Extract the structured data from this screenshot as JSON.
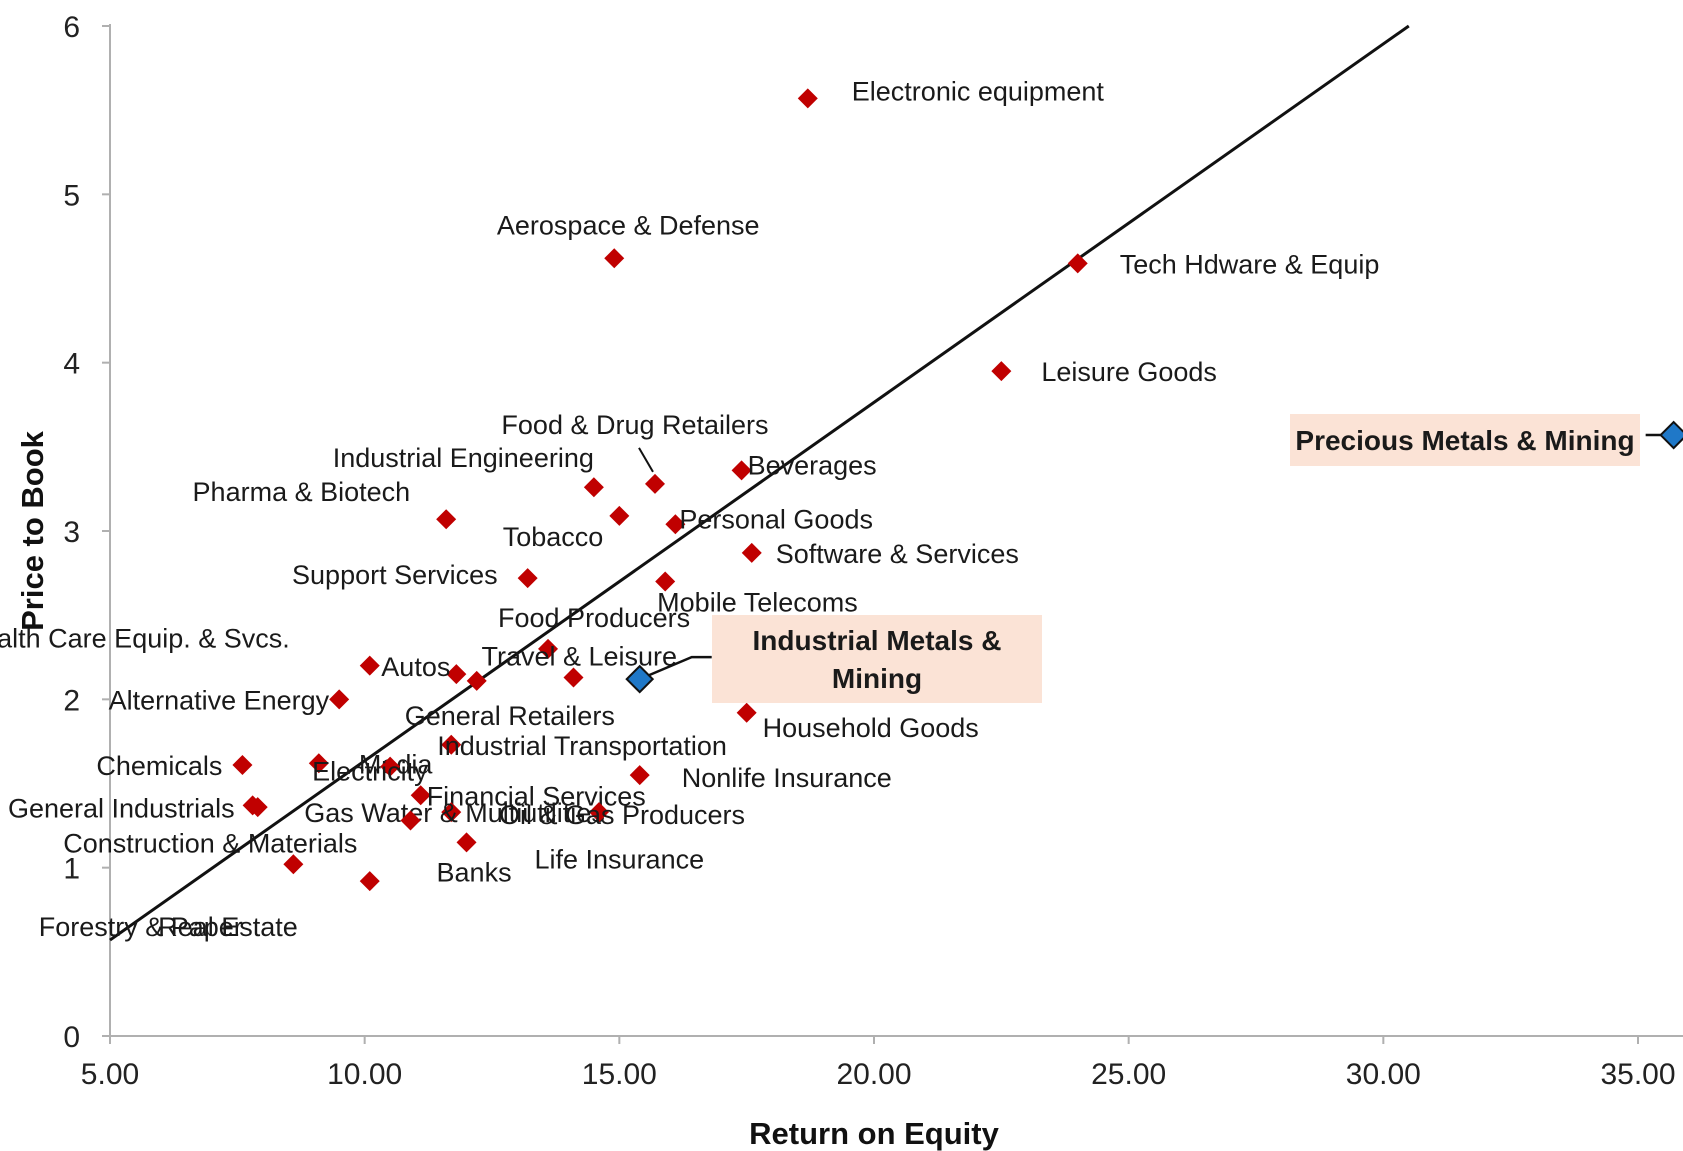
{
  "chart_data": {
    "type": "scatter",
    "xlabel": "Return on Equity",
    "ylabel": "Price to Book",
    "xlim": [
      5,
      35
    ],
    "ylim": [
      0,
      6
    ],
    "x_ticks": [
      "5.00",
      "10.00",
      "15.00",
      "20.00",
      "25.00",
      "30.00",
      "35.00"
    ],
    "y_ticks": [
      "0",
      "1",
      "2",
      "3",
      "4",
      "5",
      "6"
    ],
    "grid": false,
    "trendline": {
      "x": [
        5,
        30.5
      ],
      "y": [
        0.57,
        6.0
      ],
      "color": "#111111"
    },
    "point_color": "#c00000",
    "highlight_color": "#1f78c8",
    "highlight_box_color": "#fbe3d6",
    "points": [
      {
        "label": "Electronic equipment",
        "x": 18.7,
        "y": 5.57
      },
      {
        "label": "Aerospace & Defense",
        "x": 14.9,
        "y": 4.62
      },
      {
        "label": "Tech Hdware & Equip",
        "x": 24.0,
        "y": 4.59
      },
      {
        "label": "Leisure Goods",
        "x": 22.5,
        "y": 3.95
      },
      {
        "label": "Food & Drug Retailers",
        "x": 15.7,
        "y": 3.28
      },
      {
        "label": "Beverages",
        "x": 17.4,
        "y": 3.36
      },
      {
        "label": "Industrial Engineering",
        "x": 14.5,
        "y": 3.26
      },
      {
        "label": "Pharma & Biotech",
        "x": 11.6,
        "y": 3.07
      },
      {
        "label": "Tobacco",
        "x": 15.0,
        "y": 3.09
      },
      {
        "label": "Personal Goods",
        "x": 16.1,
        "y": 3.04
      },
      {
        "label": "Software &  Services",
        "x": 17.6,
        "y": 2.87
      },
      {
        "label": "Support Services",
        "x": 13.2,
        "y": 2.72
      },
      {
        "label": "Mobile Telecoms",
        "x": 15.9,
        "y": 2.7
      },
      {
        "label": "Food Producers",
        "x": 13.6,
        "y": 2.3
      },
      {
        "label": "Health Care Equip. & Svcs.",
        "x": 10.1,
        "y": 2.2
      },
      {
        "label": "Autos",
        "x": 11.8,
        "y": 2.15
      },
      {
        "label": "Travel & Leisure",
        "x": 14.1,
        "y": 2.13
      },
      {
        "label": "General Retailers",
        "x": 12.2,
        "y": 2.11
      },
      {
        "label": "Alternative Energy",
        "x": 9.5,
        "y": 2.0
      },
      {
        "label": "Household Goods",
        "x": 17.5,
        "y": 1.92
      },
      {
        "label": "Industrial Transportation",
        "x": 11.7,
        "y": 1.73
      },
      {
        "label": "Chemicals",
        "x": 7.6,
        "y": 1.61
      },
      {
        "label": "Media",
        "x": 9.1,
        "y": 1.62
      },
      {
        "label": "Electricity",
        "x": 10.5,
        "y": 1.6
      },
      {
        "label": "Nonlife Insurance",
        "x": 15.4,
        "y": 1.55
      },
      {
        "label": "Financial Services",
        "x": 11.1,
        "y": 1.43
      },
      {
        "label": "General Industrials",
        "x": 7.8,
        "y": 1.37
      },
      {
        "label": "Gas Water & Multiutilities",
        "x": 11.7,
        "y": 1.33
      },
      {
        "label": "Oil & Gas Producers",
        "x": 14.6,
        "y": 1.33
      },
      {
        "label": "Construction & Materials",
        "x": 8.6,
        "y": 1.02
      },
      {
        "label": "Banks",
        "x": 12.0,
        "y": 1.15
      },
      {
        "label": "Life Insurance",
        "x": 10.9,
        "y": 1.28
      },
      {
        "label": "Real Estate",
        "x": 10.1,
        "y": 0.92
      },
      {
        "label": "Forestry & Paper",
        "x": 7.9,
        "y": 1.36
      }
    ],
    "highlights": [
      {
        "label": "Industrial Metals & Mining",
        "lines": [
          "Industrial Metals &",
          "Mining"
        ],
        "x": 15.4,
        "y": 2.12
      },
      {
        "label": "Precious Metals & Mining",
        "lines": [
          "Precious Metals & Mining"
        ],
        "x": 35.7,
        "y": 3.57
      }
    ]
  }
}
